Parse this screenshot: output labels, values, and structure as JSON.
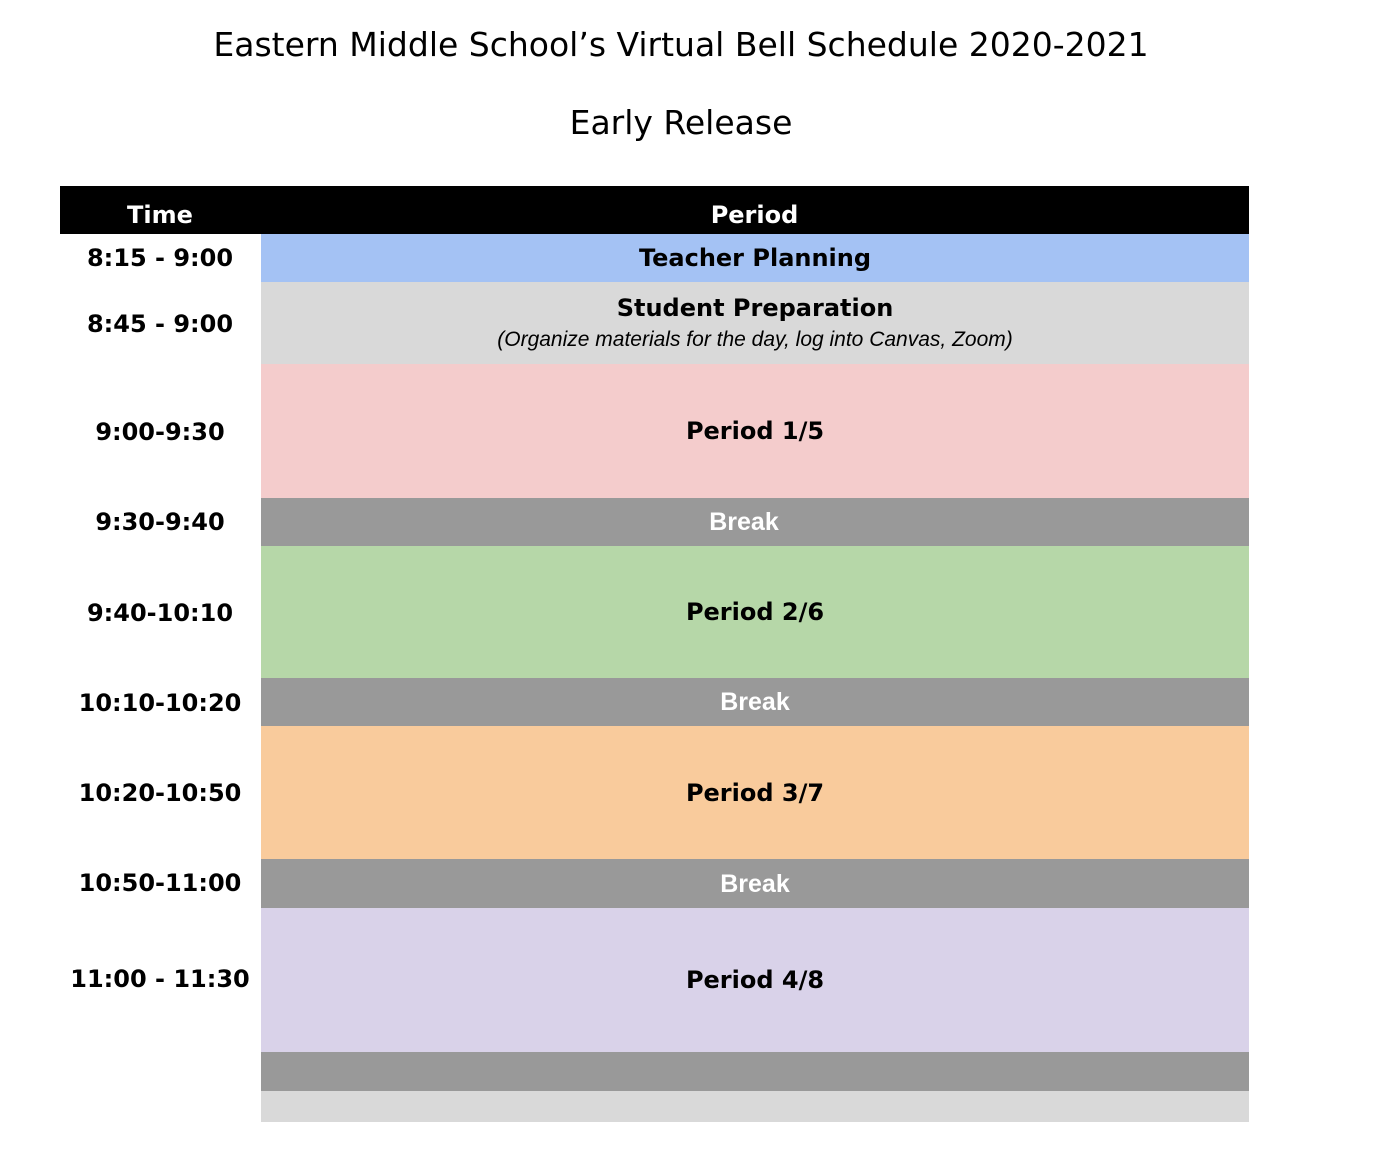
{
  "title": "Eastern Middle School’s Virtual Bell Schedule 2020-2021",
  "subtitle": "Early Release",
  "header": {
    "time_label": "Time",
    "period_label": "Period"
  },
  "rows": [
    {
      "time": "8:15 - 9:00",
      "label": "Teacher Planning",
      "color": "#a4c2f4"
    },
    {
      "time": "8:45 - 9:00",
      "label": "Student Preparation",
      "note": "(Organize materials for the day, log into Canvas, Zoom)",
      "color": "#d9d9d9"
    },
    {
      "time": "9:00-9:30",
      "label": "Period 1/5",
      "color": "#f4cccc"
    },
    {
      "time": "9:30-9:40",
      "label": "Break",
      "color": "#999999"
    },
    {
      "time": "9:40-10:10",
      "label": "Period 2/6",
      "color": "#b6d7a8"
    },
    {
      "time": "10:10-10:20",
      "label": "Break",
      "color": "#999999"
    },
    {
      "time": "10:20-10:50",
      "label": "Period 3/7",
      "color": "#f9cb9c"
    },
    {
      "time": "10:50-11:00",
      "label": "Break",
      "color": "#999999"
    },
    {
      "time": "11:00 - 11:30",
      "label": "Period 4/8",
      "color": "#d9d2e9"
    },
    {
      "time": "",
      "label": "",
      "color": "#999999"
    },
    {
      "time": "",
      "label": "",
      "color": "#d9d9d9"
    }
  ]
}
